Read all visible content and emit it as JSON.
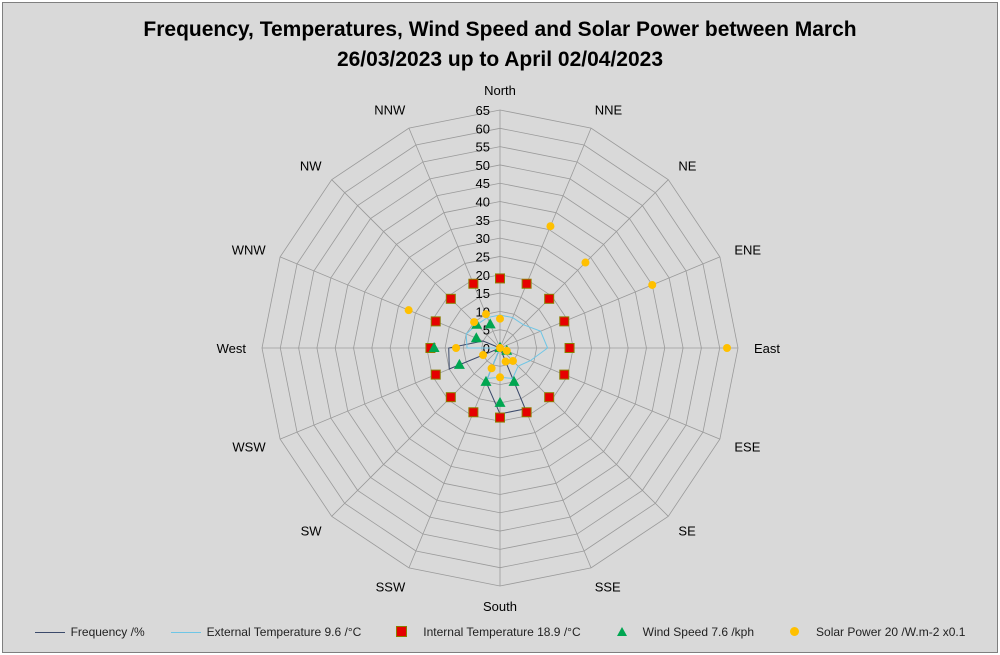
{
  "chart_data": {
    "type": "radar",
    "title_line1": "Frequency, Temperatures, Wind Speed and Solar Power between March",
    "title_line2": "26/03/2023 up to April 02/04/2023",
    "directions": [
      "North",
      "NNE",
      "NE",
      "ENE",
      "East",
      "ESE",
      "SE",
      "SSE",
      "South",
      "SSW",
      "SW",
      "WSW",
      "West",
      "WNW",
      "NW",
      "NNW"
    ],
    "rlim": [
      0,
      65
    ],
    "rticks": [
      0,
      5,
      10,
      15,
      20,
      25,
      30,
      35,
      40,
      45,
      50,
      55,
      60,
      65
    ],
    "grid": true,
    "legend_position": "bottom",
    "series": [
      {
        "name": "Frequency /%",
        "kind": "line",
        "color": "#3b4a6b",
        "values": [
          0,
          0,
          0,
          0,
          0,
          0,
          0,
          18,
          18,
          10,
          0,
          15,
          14,
          5,
          0,
          0
        ]
      },
      {
        "name": "External Temperature 9.6 /°C",
        "kind": "line",
        "color": "#6ec6e6",
        "values": [
          9,
          9,
          9,
          12,
          13,
          9,
          7,
          9,
          8,
          9,
          0,
          0,
          9,
          10,
          9,
          9
        ]
      },
      {
        "name": "Internal Temperature 18.9 /°C",
        "kind": "square",
        "color": "#e60000",
        "edge": "#8b7d00",
        "values": [
          19,
          19,
          19,
          19,
          19,
          19,
          19,
          19,
          19,
          19,
          19,
          19,
          19,
          19,
          19,
          19
        ]
      },
      {
        "name": "Wind Speed 7.6 /kph",
        "kind": "triangle",
        "color": "#00a651",
        "values": [
          0,
          0,
          0,
          0,
          0,
          2,
          0,
          10,
          15,
          10,
          0,
          12,
          18,
          7,
          9,
          7
        ]
      },
      {
        "name": "Solar Power 20 /W.m-2 x0.1",
        "kind": "dot",
        "color": "#ffc000",
        "values": [
          8,
          36,
          33,
          45,
          62,
          2,
          5,
          4,
          8,
          6,
          0,
          5,
          12,
          27,
          10,
          10
        ]
      }
    ]
  }
}
